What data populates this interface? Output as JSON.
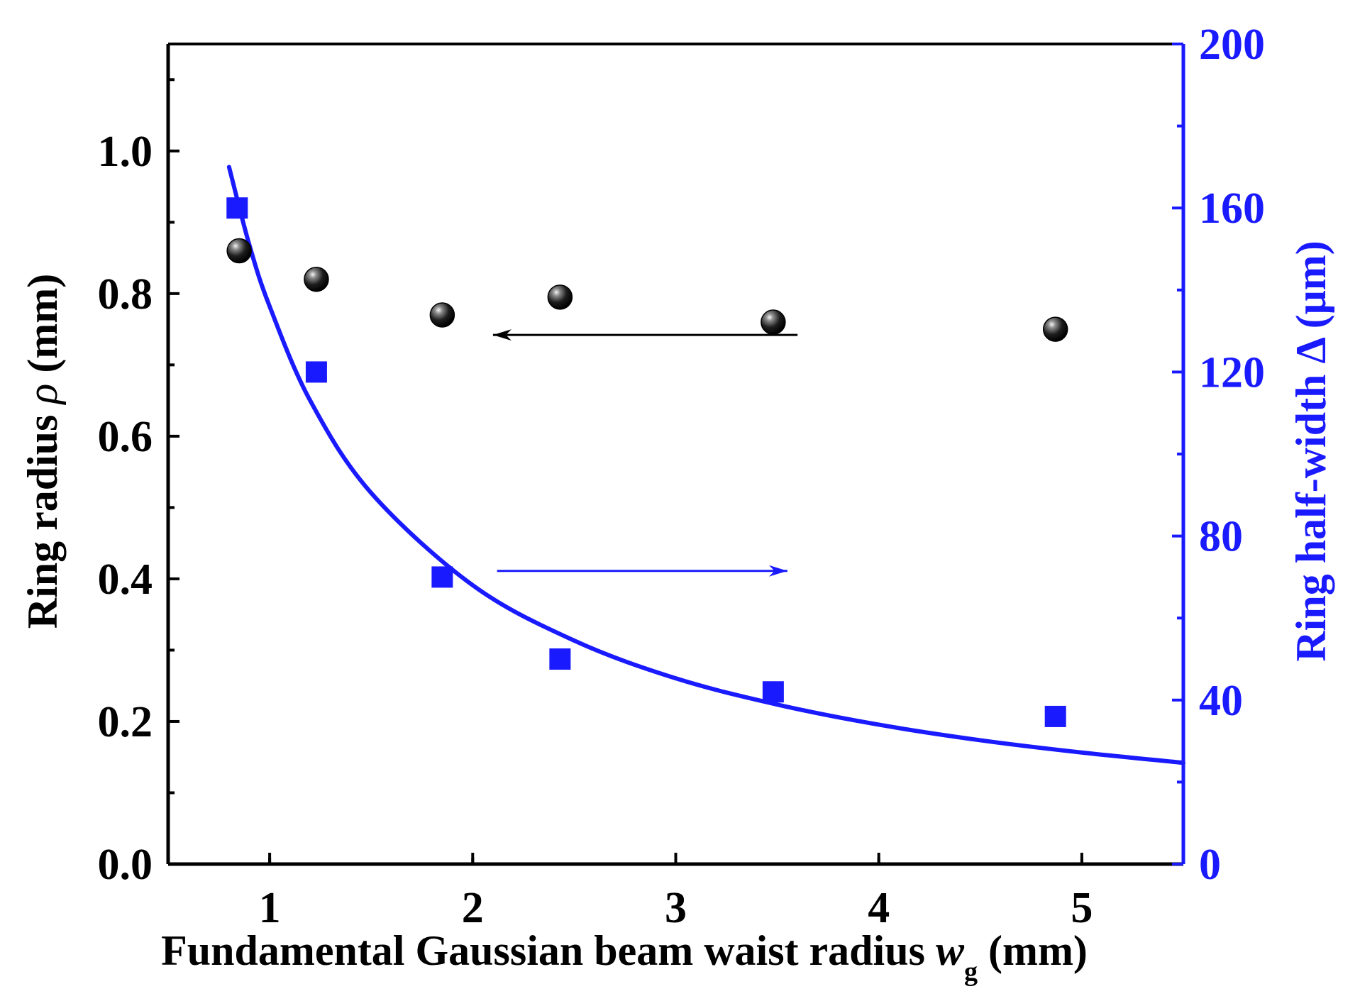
{
  "chart_data": {
    "type": "scatter",
    "xlabel": {
      "main": "Fundamental Gaussian beam waist radius ",
      "var": "w",
      "sub": "g",
      "unit": " (mm)"
    },
    "ylabel_left": {
      "main": "Ring radius ",
      "var": "ρ",
      "unit": " (mm)"
    },
    "ylabel_right": "Ring half-width Δ (μm)",
    "xlim": [
      0.5,
      5.5
    ],
    "ylim_left": [
      0,
      1.15
    ],
    "ylim_right": [
      0,
      200
    ],
    "x_ticks": [
      1,
      2,
      3,
      4,
      5
    ],
    "x_tick_labels": [
      "1",
      "2",
      "3",
      "4",
      "5"
    ],
    "y_left_ticks": [
      0.0,
      0.2,
      0.4,
      0.6,
      0.8,
      1.0
    ],
    "y_left_tick_labels": [
      "0.0",
      "0.2",
      "0.4",
      "0.6",
      "0.8",
      "1.0"
    ],
    "y_right_ticks": [
      0,
      40,
      80,
      120,
      160,
      200
    ],
    "y_right_tick_labels": [
      "0",
      "40",
      "80",
      "120",
      "160",
      "200"
    ],
    "series": [
      {
        "name": "Ring radius ρ",
        "axis": "left",
        "marker": "sphere",
        "color": "#000000",
        "x": [
          0.85,
          1.23,
          1.85,
          2.43,
          3.48,
          4.87
        ],
        "y": [
          0.86,
          0.82,
          0.77,
          0.795,
          0.76,
          0.75
        ]
      },
      {
        "name": "Ring half-width Δ",
        "axis": "right",
        "marker": "square",
        "color": "#1a1aff",
        "x": [
          0.84,
          1.23,
          1.85,
          2.43,
          3.48,
          4.87
        ],
        "y": [
          160,
          120,
          70,
          50,
          42,
          36
        ]
      },
      {
        "name": "Ring half-width Δ fit",
        "axis": "right",
        "type": "line",
        "color": "#1a1aff",
        "x": [
          0.8,
          0.9,
          1.0,
          1.2,
          1.5,
          2.0,
          2.5,
          3.0,
          3.5,
          4.0,
          4.5,
          5.0,
          5.5
        ],
        "y": [
          170,
          151,
          136,
          113,
          90.5,
          68,
          54.5,
          45.3,
          38.9,
          34,
          30.2,
          27.2,
          24.7
        ]
      }
    ],
    "annotations": [
      {
        "type": "arrow",
        "direction": "left",
        "points_to_axis": "left",
        "color": "#000000",
        "x_from": 3.6,
        "x_to": 2.1,
        "y_left": 0.742
      },
      {
        "type": "arrow",
        "direction": "right",
        "points_to_axis": "right",
        "color": "#1a1aff",
        "x_from": 2.12,
        "x_to": 3.55,
        "y_right": 71.5
      }
    ]
  }
}
